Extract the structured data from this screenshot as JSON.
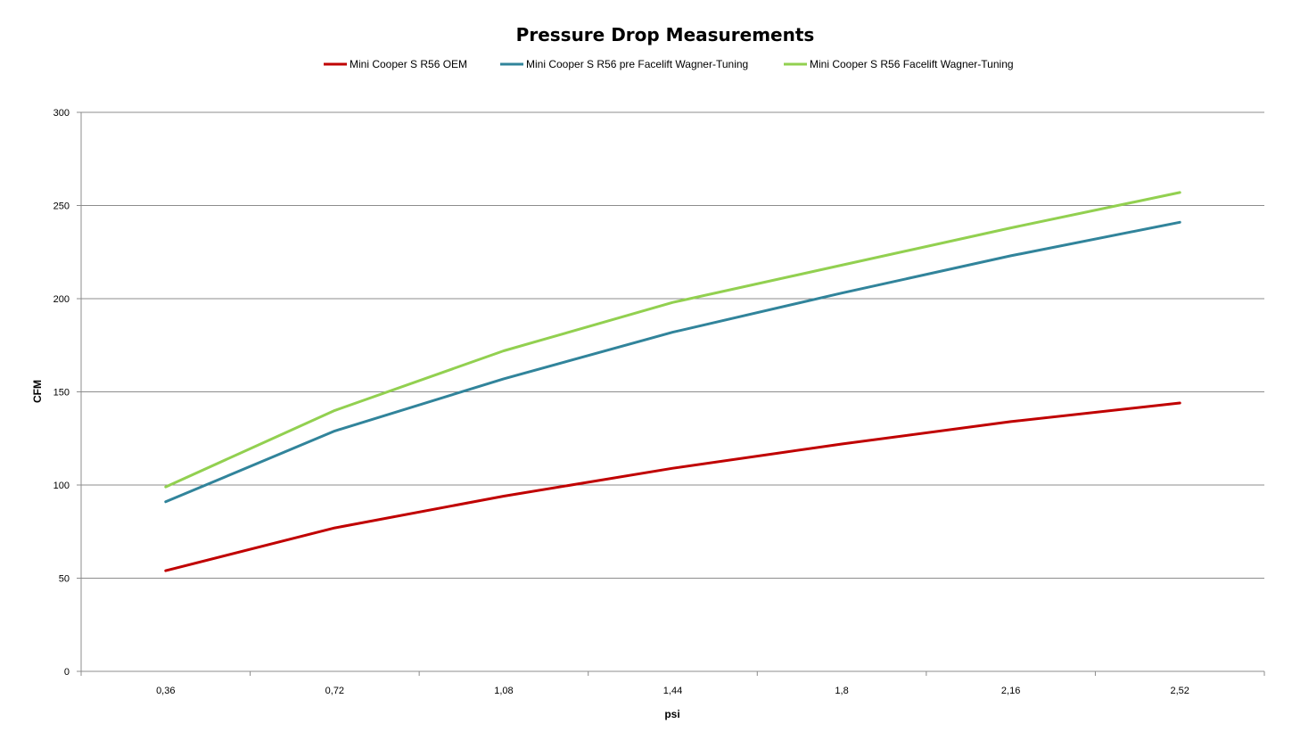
{
  "chart_data": {
    "type": "line",
    "title": "Pressure Drop Measurements",
    "xlabel": "psi",
    "ylabel": "CFM",
    "categories": [
      "0,36",
      "0,72",
      "1,08",
      "1,44",
      "1,8",
      "2,16",
      "2,52"
    ],
    "ylim": [
      0,
      300
    ],
    "yticks": [
      0,
      50,
      100,
      150,
      200,
      250,
      300
    ],
    "grid": "horizontal",
    "legend_position": "top",
    "series": [
      {
        "name": "Mini Cooper S R56 OEM",
        "color": "#c00000",
        "values": [
          54,
          77,
          94,
          109,
          122,
          134,
          144
        ]
      },
      {
        "name": "Mini Cooper S R56 pre Facelift Wagner-Tuning",
        "color": "#31849b",
        "values": [
          91,
          129,
          157,
          182,
          203,
          223,
          241
        ]
      },
      {
        "name": "Mini Cooper S R56 Facelift Wagner-Tuning",
        "color": "#92d050",
        "values": [
          99,
          140,
          172,
          198,
          218,
          238,
          257
        ]
      }
    ]
  }
}
